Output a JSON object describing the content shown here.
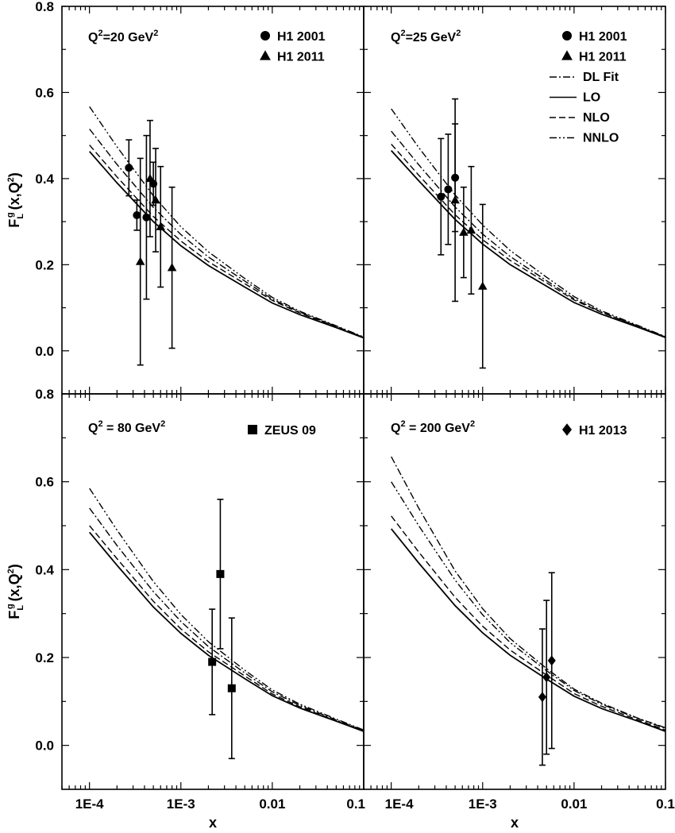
{
  "chart_data": [
    {
      "type": "line",
      "panel_label": "Q²=20 GeV²",
      "label_parts": [
        "Q",
        "2",
        "=20 GeV",
        "2"
      ],
      "xlabel": "",
      "ylabel": "F_L^g(x,Q²)",
      "ylabel_parts": [
        "F",
        "L",
        "g",
        "(x,Q",
        "2",
        ")"
      ],
      "xscale": "log",
      "xlim": [
        5e-05,
        0.1
      ],
      "ylim": [
        -0.1,
        0.8
      ],
      "xticks": [],
      "yticks": [
        "0.0",
        "0.2",
        "0.4",
        "0.6",
        "0.8"
      ],
      "grid": false,
      "legend_position": "top-right",
      "legend": [
        {
          "name": "H1 2001",
          "marker": "circle"
        },
        {
          "name": "H1 2011",
          "marker": "triangle"
        }
      ],
      "series": [
        {
          "name": "LO",
          "style": "solid",
          "x": [
            0.0001,
            0.0002,
            0.0005,
            0.001,
            0.002,
            0.005,
            0.01,
            0.02,
            0.05,
            0.1
          ],
          "y": [
            0.463,
            0.39,
            0.3,
            0.244,
            0.198,
            0.148,
            0.111,
            0.084,
            0.054,
            0.03
          ]
        },
        {
          "name": "NLO",
          "style": "dash",
          "x": [
            0.0001,
            0.0002,
            0.0005,
            0.001,
            0.002,
            0.005,
            0.01,
            0.02,
            0.05,
            0.1
          ],
          "y": [
            0.478,
            0.404,
            0.312,
            0.255,
            0.207,
            0.156,
            0.117,
            0.088,
            0.056,
            0.031
          ]
        },
        {
          "name": "DL Fit",
          "style": "dashdot",
          "x": [
            0.0001,
            0.0002,
            0.0005,
            0.001,
            0.002,
            0.005,
            0.01,
            0.02,
            0.05,
            0.1
          ],
          "y": [
            0.515,
            0.433,
            0.333,
            0.27,
            0.218,
            0.162,
            0.12,
            0.09,
            0.057,
            0.031
          ]
        },
        {
          "name": "NNLO",
          "style": "dashdotdot",
          "x": [
            0.0001,
            0.0002,
            0.0005,
            0.001,
            0.002,
            0.005,
            0.01,
            0.02,
            0.05,
            0.1
          ],
          "y": [
            0.567,
            0.474,
            0.36,
            0.288,
            0.23,
            0.168,
            0.124,
            0.092,
            0.058,
            0.032
          ]
        }
      ],
      "points": [
        {
          "series": "H1 2001",
          "marker": "circle",
          "x": 0.00027,
          "y": 0.425,
          "err": 0.065
        },
        {
          "series": "H1 2001",
          "marker": "circle",
          "x": 0.00033,
          "y": 0.315,
          "err": 0.035
        },
        {
          "series": "H1 2001",
          "marker": "circle",
          "x": 0.00042,
          "y": 0.31,
          "err": 0.19
        },
        {
          "series": "H1 2001",
          "marker": "circle",
          "x": 0.0005,
          "y": 0.388,
          "err": 0.05
        },
        {
          "series": "H1 2011",
          "marker": "triangle",
          "x": 0.00036,
          "y": 0.207,
          "err": 0.24
        },
        {
          "series": "H1 2011",
          "marker": "triangle",
          "x": 0.00046,
          "y": 0.4,
          "err": 0.135
        },
        {
          "series": "H1 2011",
          "marker": "triangle",
          "x": 0.00053,
          "y": 0.35,
          "err": 0.12
        },
        {
          "series": "H1 2011",
          "marker": "triangle",
          "x": 0.0006,
          "y": 0.288,
          "err": 0.14
        },
        {
          "series": "H1 2011",
          "marker": "triangle",
          "x": 0.0008,
          "y": 0.193,
          "err": 0.187
        }
      ]
    },
    {
      "type": "line",
      "panel_label": "Q²=25 GeV²",
      "label_parts": [
        "Q",
        "2",
        "=25 GeV",
        "2"
      ],
      "xlabel": "",
      "ylabel": "",
      "xscale": "log",
      "xlim": [
        5e-05,
        0.1
      ],
      "ylim": [
        -0.1,
        0.8
      ],
      "xticks": [],
      "yticks": [],
      "grid": false,
      "legend_position": "top-right",
      "legend": [
        {
          "name": "H1 2001",
          "marker": "circle"
        },
        {
          "name": "H1 2011",
          "marker": "triangle"
        },
        {
          "name": "DL Fit",
          "style": "dashdot"
        },
        {
          "name": "LO",
          "style": "solid"
        },
        {
          "name": "NLO",
          "style": "dash"
        },
        {
          "name": "NNLO",
          "style": "dashdotdot"
        }
      ],
      "series": [
        {
          "name": "LO",
          "style": "solid",
          "x": [
            0.0001,
            0.0002,
            0.0005,
            0.001,
            0.002,
            0.005,
            0.01,
            0.02,
            0.05,
            0.1
          ],
          "y": [
            0.465,
            0.395,
            0.305,
            0.248,
            0.2,
            0.15,
            0.112,
            0.085,
            0.055,
            0.031
          ]
        },
        {
          "name": "NLO",
          "style": "dash",
          "x": [
            0.0001,
            0.0002,
            0.0005,
            0.001,
            0.002,
            0.005,
            0.01,
            0.02,
            0.05,
            0.1
          ],
          "y": [
            0.48,
            0.408,
            0.316,
            0.258,
            0.21,
            0.158,
            0.118,
            0.089,
            0.057,
            0.032
          ]
        },
        {
          "name": "DL Fit",
          "style": "dashdot",
          "x": [
            0.0001,
            0.0002,
            0.0005,
            0.001,
            0.002,
            0.005,
            0.01,
            0.02,
            0.05,
            0.1
          ],
          "y": [
            0.51,
            0.432,
            0.334,
            0.271,
            0.219,
            0.163,
            0.121,
            0.09,
            0.057,
            0.032
          ]
        },
        {
          "name": "NNLO",
          "style": "dashdotdot",
          "x": [
            0.0001,
            0.0002,
            0.0005,
            0.001,
            0.002,
            0.005,
            0.01,
            0.02,
            0.05,
            0.1
          ],
          "y": [
            0.562,
            0.472,
            0.362,
            0.292,
            0.233,
            0.171,
            0.126,
            0.093,
            0.059,
            0.033
          ]
        }
      ],
      "points": [
        {
          "series": "H1 2001",
          "marker": "circle",
          "x": 0.00035,
          "y": 0.358,
          "err": 0.135
        },
        {
          "series": "H1 2001",
          "marker": "circle",
          "x": 0.00042,
          "y": 0.375,
          "err": 0.128
        },
        {
          "series": "H1 2001",
          "marker": "circle",
          "x": 0.0005,
          "y": 0.402,
          "err": 0.125
        },
        {
          "series": "H1 2011",
          "marker": "triangle",
          "x": 0.0005,
          "y": 0.35,
          "err": 0.235
        },
        {
          "series": "H1 2011",
          "marker": "triangle",
          "x": 0.00062,
          "y": 0.275,
          "err": 0.105
        },
        {
          "series": "H1 2011",
          "marker": "triangle",
          "x": 0.00075,
          "y": 0.28,
          "err": 0.148
        },
        {
          "series": "H1 2011",
          "marker": "triangle",
          "x": 0.001,
          "y": 0.15,
          "err": 0.19
        }
      ]
    },
    {
      "type": "line",
      "panel_label": "Q² = 80 GeV²",
      "label_parts": [
        "Q",
        "2",
        " = 80 GeV",
        "2"
      ],
      "xlabel": "x",
      "ylabel": "F_L^g(x,Q²)",
      "ylabel_parts": [
        "F",
        "L",
        "g",
        "(x,Q",
        "2",
        ")"
      ],
      "xscale": "log",
      "xlim": [
        5e-05,
        0.1
      ],
      "ylim": [
        -0.1,
        0.8
      ],
      "xticks": [
        "1E-4",
        "1E-3",
        "0.01",
        "0.1"
      ],
      "yticks": [
        "0.0",
        "0.2",
        "0.4",
        "0.6",
        "0.8"
      ],
      "grid": false,
      "legend_position": "top-right",
      "legend": [
        {
          "name": "ZEUS 09",
          "marker": "square"
        }
      ],
      "series": [
        {
          "name": "LO",
          "style": "solid",
          "x": [
            0.0001,
            0.0002,
            0.0005,
            0.001,
            0.002,
            0.005,
            0.01,
            0.02,
            0.05,
            0.1
          ],
          "y": [
            0.485,
            0.41,
            0.315,
            0.255,
            0.205,
            0.152,
            0.113,
            0.085,
            0.055,
            0.032
          ]
        },
        {
          "name": "NLO",
          "style": "dash",
          "x": [
            0.0001,
            0.0002,
            0.0005,
            0.001,
            0.002,
            0.005,
            0.01,
            0.02,
            0.05,
            0.1
          ],
          "y": [
            0.5,
            0.425,
            0.328,
            0.265,
            0.213,
            0.158,
            0.117,
            0.088,
            0.056,
            0.033
          ]
        },
        {
          "name": "DL Fit",
          "style": "dashdot",
          "x": [
            0.0001,
            0.0002,
            0.0005,
            0.001,
            0.002,
            0.005,
            0.01,
            0.02,
            0.05,
            0.1
          ],
          "y": [
            0.54,
            0.455,
            0.35,
            0.282,
            0.225,
            0.165,
            0.122,
            0.091,
            0.058,
            0.034
          ]
        },
        {
          "name": "NNLO",
          "style": "dashdotdot",
          "x": [
            0.0001,
            0.0002,
            0.0005,
            0.001,
            0.002,
            0.005,
            0.01,
            0.02,
            0.05,
            0.1
          ],
          "y": [
            0.585,
            0.49,
            0.373,
            0.298,
            0.236,
            0.171,
            0.126,
            0.094,
            0.06,
            0.035
          ]
        }
      ],
      "points": [
        {
          "series": "ZEUS 09",
          "marker": "square",
          "x": 0.0022,
          "y": 0.19,
          "err": 0.12
        },
        {
          "series": "ZEUS 09",
          "marker": "square",
          "x": 0.0027,
          "y": 0.39,
          "err": 0.17
        },
        {
          "series": "ZEUS 09",
          "marker": "square",
          "x": 0.0036,
          "y": 0.13,
          "err": 0.16
        }
      ]
    },
    {
      "type": "line",
      "panel_label": "Q² = 200 GeV²",
      "label_parts": [
        "Q",
        "2",
        " = 200 GeV",
        "2"
      ],
      "xlabel": "x",
      "ylabel": "",
      "xscale": "log",
      "xlim": [
        5e-05,
        0.1
      ],
      "ylim": [
        -0.1,
        0.8
      ],
      "xticks": [
        "1E-4",
        "1E-3",
        "0.01",
        "0.1"
      ],
      "yticks": [],
      "grid": false,
      "legend_position": "top-right",
      "legend": [
        {
          "name": "H1 2013",
          "marker": "diamond"
        }
      ],
      "series": [
        {
          "name": "LO",
          "style": "solid",
          "x": [
            0.0001,
            0.0002,
            0.0005,
            0.001,
            0.002,
            0.005,
            0.01,
            0.02,
            0.05,
            0.1
          ],
          "y": [
            0.493,
            0.415,
            0.318,
            0.256,
            0.205,
            0.151,
            0.112,
            0.084,
            0.055,
            0.032
          ]
        },
        {
          "name": "NLO",
          "style": "dash",
          "x": [
            0.0001,
            0.0002,
            0.0005,
            0.001,
            0.002,
            0.005,
            0.01,
            0.02,
            0.05,
            0.1
          ],
          "y": [
            0.522,
            0.44,
            0.337,
            0.271,
            0.217,
            0.16,
            0.118,
            0.089,
            0.058,
            0.035
          ]
        },
        {
          "name": "DL Fit",
          "style": "dashdot",
          "x": [
            0.0001,
            0.0002,
            0.0005,
            0.001,
            0.002,
            0.005,
            0.01,
            0.02,
            0.05,
            0.1
          ],
          "y": [
            0.657,
            0.54,
            0.397,
            0.311,
            0.243,
            0.175,
            0.128,
            0.096,
            0.062,
            0.04
          ]
        },
        {
          "name": "NNLO",
          "style": "dashdotdot",
          "x": [
            0.0001,
            0.0002,
            0.0005,
            0.001,
            0.002,
            0.005,
            0.01,
            0.02,
            0.05,
            0.1
          ],
          "y": [
            0.6,
            0.5,
            0.376,
            0.297,
            0.234,
            0.17,
            0.125,
            0.094,
            0.061,
            0.039
          ]
        }
      ],
      "points": [
        {
          "series": "H1 2013",
          "marker": "diamond",
          "x": 0.0045,
          "y": 0.11,
          "err": 0.155
        },
        {
          "series": "H1 2013",
          "marker": "diamond",
          "x": 0.005,
          "y": 0.155,
          "err": 0.175
        },
        {
          "series": "H1 2013",
          "marker": "diamond",
          "x": 0.0057,
          "y": 0.193,
          "err": 0.2
        }
      ]
    }
  ]
}
